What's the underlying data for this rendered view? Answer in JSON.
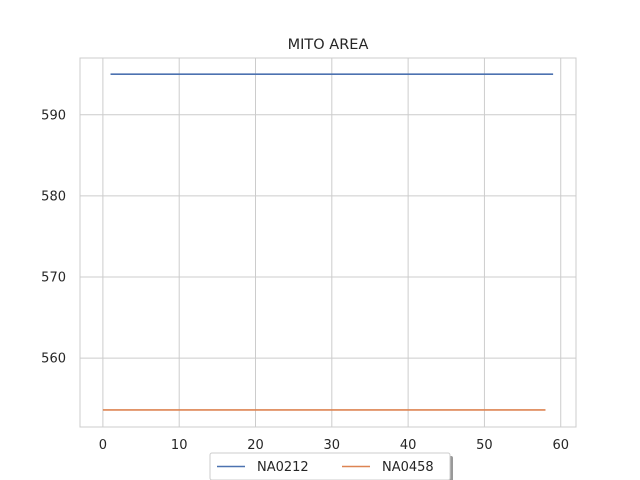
{
  "chart_data": {
    "type": "line",
    "title": "MITO AREA",
    "xlabel": "",
    "ylabel": "",
    "xlim": [
      -3,
      62
    ],
    "ylim": [
      551.5,
      597
    ],
    "xticks": [
      0,
      10,
      20,
      30,
      40,
      50,
      60
    ],
    "yticks": [
      560,
      570,
      580,
      590
    ],
    "grid": true,
    "legend_position": "bottom-center",
    "series": [
      {
        "name": "NA0212",
        "color": "#4c72b0",
        "x": [
          1,
          59
        ],
        "y": [
          595,
          595
        ]
      },
      {
        "name": "NA0458",
        "color": "#dd8452",
        "x": [
          0,
          58
        ],
        "y": [
          553.6,
          553.6
        ]
      }
    ]
  }
}
